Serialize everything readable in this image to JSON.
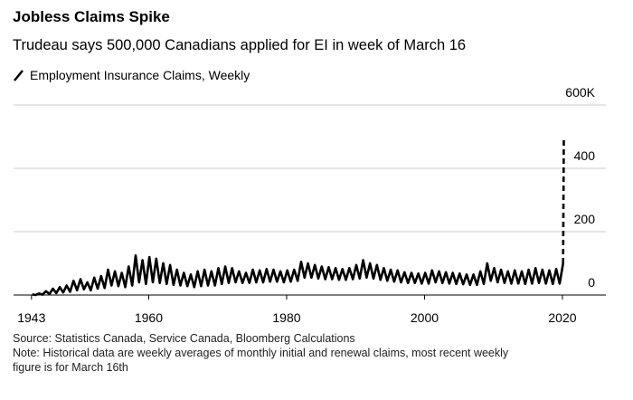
{
  "chart_data": {
    "type": "line",
    "title": "Jobless Claims Spike",
    "subtitle": "Trudeau says 500,000 Canadians applied for EI in week of March 16",
    "source": "Source: Statistics Canada, Service Canada, Bloomberg Calculations",
    "note": "Note: Historical data are weekly averages of monthly initial and renewal claims, most recent weekly figure is for March 16th",
    "xlim": [
      1940.4,
      2026.3
    ],
    "xticks": [
      1943,
      1960,
      1980,
      2000,
      2020
    ],
    "ylim": [
      0,
      600
    ],
    "yticks": [
      0,
      200,
      400,
      {
        "value": 600,
        "label": "600K"
      }
    ],
    "grid": true,
    "x": [
      1943.1,
      1943.6,
      1944.1,
      1944.6,
      1945.1,
      1945.6,
      1946.1,
      1946.6,
      1947.1,
      1947.6,
      1948.1,
      1948.6,
      1949.1,
      1949.6,
      1950.1,
      1950.6,
      1951.1,
      1951.6,
      1952.1,
      1952.6,
      1953.1,
      1953.6,
      1954.1,
      1954.6,
      1955.1,
      1955.6,
      1956.1,
      1956.6,
      1957.1,
      1957.6,
      1958.1,
      1958.6,
      1959.1,
      1959.6,
      1960.1,
      1960.6,
      1961.1,
      1961.6,
      1962.1,
      1962.6,
      1963.1,
      1963.6,
      1964.1,
      1964.6,
      1965.1,
      1965.6,
      1966.1,
      1966.6,
      1967.1,
      1967.6,
      1968.1,
      1968.6,
      1969.1,
      1969.6,
      1970.1,
      1970.6,
      1971.1,
      1971.6,
      1972.1,
      1972.6,
      1973.1,
      1973.6,
      1974.1,
      1974.6,
      1975.1,
      1975.6,
      1976.1,
      1976.6,
      1977.1,
      1977.6,
      1978.1,
      1978.6,
      1979.1,
      1979.6,
      1980.1,
      1980.6,
      1981.1,
      1981.6,
      1982.1,
      1982.6,
      1983.1,
      1983.6,
      1984.1,
      1984.6,
      1985.1,
      1985.6,
      1986.1,
      1986.6,
      1987.1,
      1987.6,
      1988.1,
      1988.6,
      1989.1,
      1989.6,
      1990.1,
      1990.6,
      1991.1,
      1991.6,
      1992.1,
      1992.6,
      1993.1,
      1993.6,
      1994.1,
      1994.6,
      1995.1,
      1995.6,
      1996.1,
      1996.6,
      1997.1,
      1997.6,
      1998.1,
      1998.6,
      1999.1,
      1999.6,
      2000.1,
      2000.6,
      2001.1,
      2001.6,
      2002.1,
      2002.6,
      2003.1,
      2003.6,
      2004.1,
      2004.6,
      2005.1,
      2005.6,
      2006.1,
      2006.6,
      2007.1,
      2007.6,
      2008.1,
      2008.6,
      2009.1,
      2009.6,
      2010.1,
      2010.6,
      2011.1,
      2011.6,
      2012.1,
      2012.6,
      2013.1,
      2013.6,
      2014.1,
      2014.6,
      2015.1,
      2015.6,
      2016.1,
      2016.6,
      2017.1,
      2017.6,
      2018.1,
      2018.6,
      2019.1,
      2019.6,
      2020.1,
      2020.2
    ],
    "series": [
      {
        "name": "Employment Insurance Claims, Weekly",
        "color": "#000000",
        "dash_last_segment": true,
        "values": [
          2,
          0,
          5,
          1,
          12,
          3,
          20,
          6,
          25,
          8,
          30,
          10,
          45,
          15,
          50,
          18,
          40,
          15,
          55,
          20,
          60,
          22,
          80,
          30,
          75,
          28,
          70,
          25,
          90,
          30,
          125,
          40,
          110,
          35,
          120,
          40,
          115,
          38,
          100,
          35,
          95,
          32,
          80,
          30,
          70,
          28,
          65,
          25,
          75,
          28,
          80,
          30,
          75,
          30,
          85,
          35,
          90,
          38,
          85,
          40,
          75,
          38,
          70,
          38,
          80,
          40,
          78,
          40,
          82,
          42,
          80,
          42,
          75,
          40,
          78,
          42,
          80,
          45,
          105,
          55,
          100,
          55,
          95,
          52,
          90,
          50,
          88,
          50,
          85,
          48,
          82,
          48,
          85,
          50,
          95,
          52,
          110,
          55,
          100,
          52,
          95,
          48,
          85,
          45,
          80,
          42,
          78,
          40,
          72,
          38,
          70,
          38,
          68,
          36,
          70,
          36,
          78,
          40,
          75,
          38,
          72,
          36,
          70,
          35,
          68,
          34,
          65,
          32,
          65,
          32,
          75,
          35,
          100,
          45,
          85,
          40,
          80,
          38,
          75,
          36,
          78,
          36,
          75,
          35,
          80,
          36,
          85,
          38,
          80,
          36,
          78,
          35,
          82,
          36,
          100,
          500
        ]
      }
    ]
  }
}
